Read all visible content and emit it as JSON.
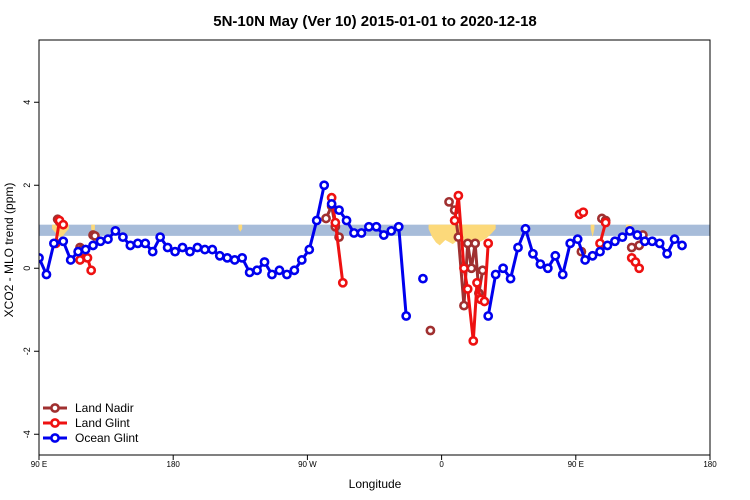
{
  "chart_data": {
    "type": "line",
    "title": "5N-10N May (Ver 10)   2015-01-01 to 2020-12-18",
    "xlabel": "Longitude",
    "ylabel": "XCO2 - MLO trend (ppm)",
    "xlim": [
      90,
      450
    ],
    "ylim": [
      -4.5,
      5.5
    ],
    "x_ticks": [
      {
        "value": 90,
        "label": "90 E"
      },
      {
        "value": 162,
        "label": "180"
      },
      {
        "value": 234,
        "label": "90 W"
      },
      {
        "value": 306,
        "label": "0"
      },
      {
        "value": 378,
        "label": "90 E"
      },
      {
        "value": 450,
        "label": "180"
      }
    ],
    "y_ticks": [
      {
        "value": -4,
        "label": "-4"
      },
      {
        "value": -2,
        "label": "-2"
      },
      {
        "value": 0,
        "label": "0"
      },
      {
        "value": 2,
        "label": "2"
      },
      {
        "value": 4,
        "label": "4"
      }
    ],
    "band": {
      "y_low": 0.78,
      "y_high": 1.05,
      "color": "#a7bcd9"
    },
    "land_mask": {
      "color": "#fcd97a",
      "segments": [
        [
          [
            97,
            0.95
          ],
          [
            99,
            0.85
          ],
          [
            102,
            0.72
          ],
          [
            104,
            0.85
          ],
          [
            106,
            0.95
          ]
        ],
        [
          [
            118,
            0.95
          ],
          [
            119,
            0.8
          ],
          [
            120,
            0.95
          ]
        ],
        [
          [
            197,
            0.95
          ],
          [
            198,
            0.88
          ],
          [
            199,
            0.95
          ]
        ],
        [
          [
            299,
            0.95
          ],
          [
            301,
            0.75
          ],
          [
            303,
            0.62
          ],
          [
            305,
            0.55
          ],
          [
            308,
            0.68
          ],
          [
            312,
            0.58
          ],
          [
            316,
            0.72
          ],
          [
            320,
            0.62
          ],
          [
            324,
            0.55
          ],
          [
            326,
            0.62
          ],
          [
            330,
            0.72
          ],
          [
            333,
            0.85
          ],
          [
            335,
            0.95
          ]
        ],
        [
          [
            386,
            0.95
          ],
          [
            387,
            0.75
          ],
          [
            388,
            0.95
          ]
        ],
        [
          [
            405,
            0.95
          ],
          [
            407,
            0.8
          ],
          [
            408,
            0.95
          ]
        ]
      ]
    },
    "series": [
      {
        "name": "Land Nadir",
        "color": "#a03030",
        "segments": [
          [
            [
              100,
              1.18
            ],
            [
              101,
              1.12
            ]
          ],
          [
            [
              112,
              0.5
            ],
            [
              113,
              0.45
            ]
          ],
          [
            [
              119,
              0.8
            ],
            [
              120,
              0.78
            ]
          ],
          [
            [
              244,
              1.2
            ],
            [
              247,
              1.5
            ],
            [
              249,
              1.0
            ],
            [
              251,
              0.75
            ]
          ],
          [
            [
              300,
              -1.5
            ]
          ],
          [
            [
              310,
              1.6
            ],
            [
              313,
              1.4
            ],
            [
              315,
              0.75
            ],
            [
              318,
              -0.9
            ],
            [
              320,
              0.6
            ],
            [
              322,
              0.0
            ],
            [
              324,
              0.6
            ],
            [
              326,
              -0.6
            ],
            [
              328,
              -0.05
            ]
          ],
          [
            [
              381,
              0.4
            ]
          ],
          [
            [
              392,
              1.2
            ],
            [
              394,
              1.15
            ]
          ],
          [
            [
              408,
              0.5
            ],
            [
              412,
              0.55
            ],
            [
              414,
              0.8
            ]
          ]
        ]
      },
      {
        "name": "Land Glint",
        "color": "#ee1111",
        "segments": [
          [
            [
              99,
              0.6
            ],
            [
              101,
              1.15
            ],
            [
              103,
              1.05
            ]
          ],
          [
            [
              112,
              0.2
            ],
            [
              114,
              0.4
            ],
            [
              116,
              0.25
            ],
            [
              118,
              -0.05
            ]
          ],
          [
            [
              247,
              1.7
            ],
            [
              249,
              1.1
            ],
            [
              253,
              -0.35
            ]
          ],
          [
            [
              313,
              1.15
            ],
            [
              315,
              1.75
            ],
            [
              318,
              0.0
            ],
            [
              320,
              -0.5
            ],
            [
              323,
              -1.75
            ],
            [
              325,
              -0.35
            ],
            [
              327,
              -0.75
            ],
            [
              329,
              -0.8
            ],
            [
              331,
              0.6
            ]
          ],
          [
            [
              380,
              1.3
            ],
            [
              382,
              1.35
            ]
          ],
          [
            [
              391,
              0.6
            ],
            [
              394,
              1.1
            ]
          ],
          [
            [
              408,
              0.25
            ],
            [
              410,
              0.15
            ],
            [
              412,
              0.0
            ]
          ]
        ]
      },
      {
        "name": "Ocean Glint",
        "color": "#0000ee",
        "segments": [
          [
            [
              90,
              0.25
            ],
            [
              94,
              -0.15
            ],
            [
              98,
              0.6
            ],
            [
              103,
              0.65
            ],
            [
              107,
              0.2
            ],
            [
              111,
              0.4
            ],
            [
              115,
              0.45
            ],
            [
              119,
              0.55
            ],
            [
              123,
              0.65
            ],
            [
              127,
              0.7
            ],
            [
              131,
              0.9
            ],
            [
              135,
              0.75
            ],
            [
              139,
              0.55
            ],
            [
              143,
              0.6
            ],
            [
              147,
              0.6
            ],
            [
              151,
              0.4
            ],
            [
              155,
              0.75
            ],
            [
              159,
              0.5
            ],
            [
              163,
              0.4
            ],
            [
              167,
              0.5
            ],
            [
              171,
              0.4
            ],
            [
              175,
              0.5
            ],
            [
              179,
              0.45
            ],
            [
              183,
              0.45
            ],
            [
              187,
              0.3
            ],
            [
              191,
              0.25
            ],
            [
              195,
              0.2
            ],
            [
              199,
              0.25
            ],
            [
              203,
              -0.1
            ],
            [
              207,
              -0.05
            ],
            [
              211,
              0.15
            ],
            [
              215,
              -0.15
            ],
            [
              219,
              -0.05
            ],
            [
              223,
              -0.15
            ],
            [
              227,
              -0.05
            ],
            [
              231,
              0.2
            ],
            [
              235,
              0.45
            ],
            [
              239,
              1.15
            ],
            [
              243,
              2.0
            ]
          ],
          [
            [
              247,
              1.55
            ],
            [
              251,
              1.4
            ],
            [
              255,
              1.15
            ],
            [
              259,
              0.85
            ],
            [
              263,
              0.85
            ],
            [
              267,
              1.0
            ],
            [
              271,
              1.0
            ],
            [
              275,
              0.8
            ],
            [
              279,
              0.9
            ],
            [
              283,
              1.0
            ],
            [
              287,
              -1.15
            ]
          ],
          [
            [
              296,
              -0.25
            ]
          ],
          [
            [
              331,
              -1.15
            ],
            [
              335,
              -0.15
            ],
            [
              339,
              0.0
            ],
            [
              343,
              -0.25
            ],
            [
              347,
              0.5
            ],
            [
              351,
              0.95
            ],
            [
              355,
              0.35
            ],
            [
              359,
              0.1
            ],
            [
              363,
              0.0
            ],
            [
              367,
              0.3
            ],
            [
              371,
              -0.15
            ],
            [
              375,
              0.6
            ],
            [
              379,
              0.7
            ],
            [
              383,
              0.2
            ],
            [
              387,
              0.3
            ],
            [
              391,
              0.4
            ],
            [
              395,
              0.55
            ],
            [
              399,
              0.65
            ],
            [
              403,
              0.75
            ],
            [
              407,
              0.9
            ],
            [
              411,
              0.8
            ],
            [
              415,
              0.65
            ],
            [
              419,
              0.65
            ],
            [
              423,
              0.6
            ],
            [
              427,
              0.35
            ],
            [
              431,
              0.7
            ],
            [
              435,
              0.55
            ]
          ]
        ]
      }
    ],
    "legend": {
      "position": "bottom-left",
      "entries": [
        "Land Nadir",
        "Land Glint",
        "Ocean Glint"
      ]
    },
    "grid": false
  }
}
